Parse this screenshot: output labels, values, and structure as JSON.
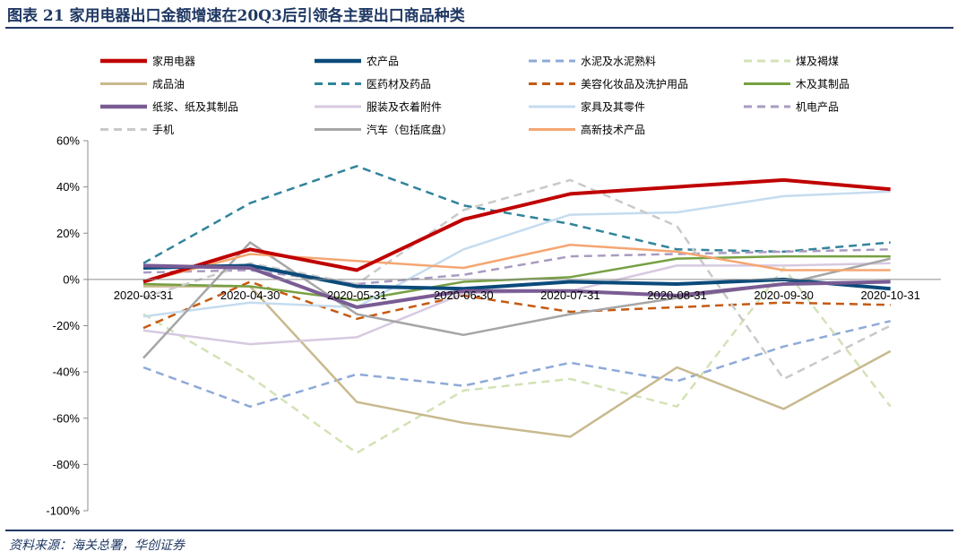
{
  "title": "图表 21   家用电器出口金额增速在20Q3后引领各主要出口商品种类",
  "source": "资料来源：海关总署，华创证券",
  "chart_data": {
    "type": "line",
    "title": "",
    "xlabel": "",
    "ylabel": "",
    "ylim": [
      -100,
      60
    ],
    "y_ticks": [
      60,
      40,
      20,
      0,
      -20,
      -40,
      -60,
      -80,
      -100
    ],
    "y_tick_labels": [
      "60%",
      "40%",
      "20%",
      "0%",
      "-20%",
      "-40%",
      "-60%",
      "-80%",
      "-100%"
    ],
    "categories": [
      "2020-03-31",
      "2020-04-30",
      "2020-05-31",
      "2020-06-30",
      "2020-07-31",
      "2020-08-31",
      "2020-09-30",
      "2020-10-31"
    ],
    "legend_position": "top",
    "series": [
      {
        "name": "家用电器",
        "color": "#c00000",
        "dash": "solid",
        "width": "heavy",
        "values": [
          -1,
          13,
          4,
          26,
          37,
          40,
          43,
          39
        ]
      },
      {
        "name": "农产品",
        "color": "#0a4a7a",
        "dash": "solid",
        "width": "heavy",
        "values": [
          5,
          6,
          -3,
          -4,
          -1,
          -2,
          0,
          -4
        ]
      },
      {
        "name": "水泥及水泥熟料",
        "color": "#8eaad8",
        "dash": "dashed",
        "width": "normal",
        "values": [
          -38,
          -55,
          -41,
          -46,
          -36,
          -44,
          -29,
          -18
        ]
      },
      {
        "name": "煤及褐煤",
        "color": "#d3e2b6",
        "dash": "dashed",
        "width": "normal",
        "values": [
          -15,
          -42,
          -75,
          -48,
          -43,
          -55,
          5,
          -55
        ]
      },
      {
        "name": "成品油",
        "color": "#c8b98e",
        "dash": "solid",
        "width": "normal",
        "values": [
          -3,
          -3,
          -53,
          -62,
          -68,
          -38,
          -56,
          -31
        ]
      },
      {
        "name": "医药材及药品",
        "color": "#31849b",
        "dash": "dashed",
        "width": "normal",
        "values": [
          7,
          33,
          49,
          32,
          24,
          13,
          12,
          16
        ]
      },
      {
        "name": "美容化妆品及洗护用品",
        "color": "#c55a11",
        "dash": "dashed",
        "width": "normal",
        "values": [
          -21,
          -1,
          -17,
          -7,
          -14,
          -12,
          -10,
          -11
        ]
      },
      {
        "name": "木及其制品",
        "color": "#77a043",
        "dash": "solid",
        "width": "normal",
        "values": [
          -2,
          -3,
          -9,
          -1,
          1,
          9,
          10,
          10
        ]
      },
      {
        "name": "纸浆、纸及其制品",
        "color": "#7a5c94",
        "dash": "solid",
        "width": "heavy",
        "values": [
          6,
          5,
          -12,
          -5,
          -5,
          -7,
          -2,
          -1
        ]
      },
      {
        "name": "服装及衣着附件",
        "color": "#d7c9e0",
        "dash": "solid",
        "width": "normal",
        "values": [
          -22,
          -28,
          -25,
          -6,
          -5,
          6,
          6,
          7
        ]
      },
      {
        "name": "家具及其零件",
        "color": "#c5dcef",
        "dash": "solid",
        "width": "normal",
        "values": [
          -16,
          -10,
          -12,
          13,
          28,
          29,
          36,
          38
        ]
      },
      {
        "name": "机电产品",
        "color": "#a99bc1",
        "dash": "dashed",
        "width": "normal",
        "values": [
          3,
          4,
          -2,
          2,
          10,
          11,
          12,
          13
        ]
      },
      {
        "name": "手机",
        "color": "#c9c9c9",
        "dash": "dashed",
        "width": "normal",
        "values": [
          -8,
          7,
          -2,
          30,
          43,
          23,
          -43,
          -20
        ]
      },
      {
        "name": "汽车（包括底盘）",
        "color": "#a6a6a6",
        "dash": "solid",
        "width": "normal",
        "values": [
          -34,
          16,
          -15,
          -24,
          -15,
          -8,
          -2,
          9
        ]
      },
      {
        "name": "高新技术产品",
        "color": "#f4a672",
        "dash": "solid",
        "width": "normal",
        "values": [
          -1,
          11,
          8,
          5,
          15,
          12,
          4,
          4
        ]
      }
    ]
  }
}
